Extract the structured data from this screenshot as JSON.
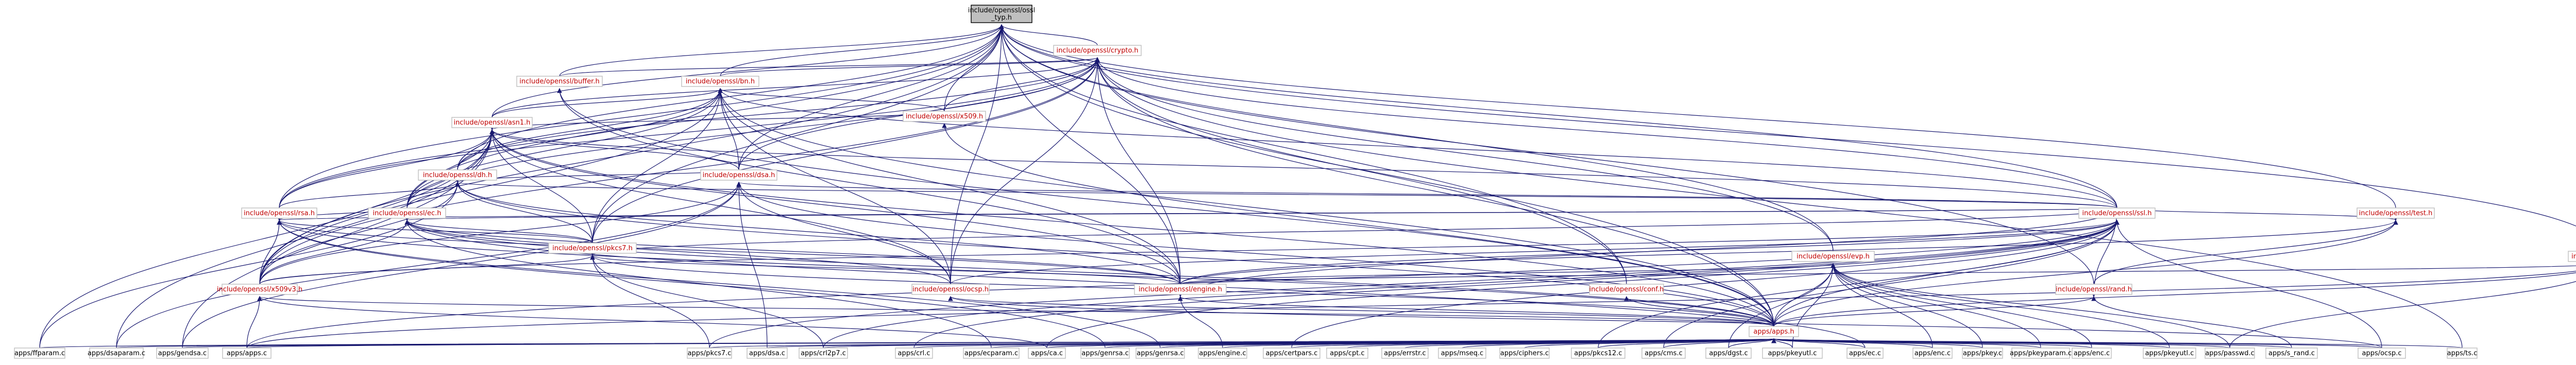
{
  "diagram": {
    "nodes": [
      {
        "id": "n0",
        "lines": [
          "include/openssl/ossl",
          "_typ.h"
        ],
        "color": "black",
        "root": true
      },
      {
        "id": "n1",
        "lines": [
          "include/openssl/crypto.h"
        ],
        "color": "red"
      },
      {
        "id": "n2",
        "lines": [
          "include/openssl/buffer.h"
        ],
        "color": "red"
      },
      {
        "id": "n3",
        "lines": [
          "include/openssl/bn.h"
        ],
        "color": "red"
      },
      {
        "id": "n4",
        "lines": [
          "include/openssl/asn1.h"
        ],
        "color": "red"
      },
      {
        "id": "n5",
        "lines": [
          "include/openssl/x509.h"
        ],
        "color": "red"
      },
      {
        "id": "n6",
        "lines": [
          "include/openssl/dh.h"
        ],
        "color": "red"
      },
      {
        "id": "n7",
        "lines": [
          "include/openssl/dsa.h"
        ],
        "color": "red"
      },
      {
        "id": "n8",
        "lines": [
          "include/openssl/ec.h"
        ],
        "color": "red"
      },
      {
        "id": "n9",
        "lines": [
          "include/openssl/rsa.h"
        ],
        "color": "red"
      },
      {
        "id": "n10",
        "lines": [
          "include/openssl/pkcs7.h"
        ],
        "color": "red"
      },
      {
        "id": "n11",
        "lines": [
          "include/openssl/ssl.h"
        ],
        "color": "red"
      },
      {
        "id": "n12",
        "lines": [
          "include/openssl/engine.h"
        ],
        "color": "red"
      },
      {
        "id": "n13",
        "lines": [
          "include/openssl/ocsp.h"
        ],
        "color": "red"
      },
      {
        "id": "n14",
        "lines": [
          "include/openssl/evp.h"
        ],
        "color": "red"
      },
      {
        "id": "n15",
        "lines": [
          "include/openssl/conf.h"
        ],
        "color": "red"
      },
      {
        "id": "n16",
        "lines": [
          "include/openssl/ui.h"
        ],
        "color": "red"
      },
      {
        "id": "n17",
        "lines": [
          "include/openssl/x509v3.h"
        ],
        "color": "red"
      },
      {
        "id": "n18",
        "lines": [
          "include/openssl/test.h"
        ],
        "color": "red"
      },
      {
        "id": "n19",
        "lines": [
          "include/openssl/rand.h"
        ],
        "color": "red"
      },
      {
        "id": "n20",
        "lines": [
          "apps/apps.h"
        ],
        "color": "red"
      },
      {
        "id": "l0",
        "lines": [
          "apps/ffparam.c"
        ],
        "color": "black"
      },
      {
        "id": "l1",
        "lines": [
          "apps/dsaparam.c"
        ],
        "color": "black"
      },
      {
        "id": "l2",
        "lines": [
          "apps/gendsa.c"
        ],
        "color": "black"
      },
      {
        "id": "l3",
        "lines": [
          "apps/apps.c"
        ],
        "color": "black"
      },
      {
        "id": "l4",
        "lines": [
          "apps/pkcs7.c"
        ],
        "color": "black"
      },
      {
        "id": "l5",
        "lines": [
          "apps/dsa.c"
        ],
        "color": "black"
      },
      {
        "id": "l6",
        "lines": [
          "apps/crl2p7.c"
        ],
        "color": "black"
      },
      {
        "id": "l7",
        "lines": [
          "apps/crl.c"
        ],
        "color": "black"
      },
      {
        "id": "l8",
        "lines": [
          "apps/ecparam.c"
        ],
        "color": "black"
      },
      {
        "id": "l9",
        "lines": [
          "apps/ca.c"
        ],
        "color": "black"
      },
      {
        "id": "l10",
        "lines": [
          "apps/genrsa.c"
        ],
        "color": "black"
      },
      {
        "id": "l11",
        "lines": [
          "apps/genrsa.c"
        ],
        "color": "black"
      },
      {
        "id": "l12",
        "lines": [
          "apps/engine.c"
        ],
        "color": "black"
      },
      {
        "id": "l13",
        "lines": [
          "apps/certpars.c"
        ],
        "color": "black"
      },
      {
        "id": "l14",
        "lines": [
          "apps/cpt.c"
        ],
        "color": "black"
      },
      {
        "id": "l15",
        "lines": [
          "apps/errstr.c"
        ],
        "color": "black"
      },
      {
        "id": "l16",
        "lines": [
          "apps/mseq.c"
        ],
        "color": "black"
      },
      {
        "id": "l17",
        "lines": [
          "apps/ciphers.c"
        ],
        "color": "black"
      },
      {
        "id": "l18",
        "lines": [
          "apps/pkcs12.c"
        ],
        "color": "black"
      },
      {
        "id": "l19",
        "lines": [
          "apps/cms.c"
        ],
        "color": "black"
      },
      {
        "id": "l20",
        "lines": [
          "apps/dgst.c"
        ],
        "color": "black"
      },
      {
        "id": "l21",
        "lines": [
          "apps/pkeyutl.c"
        ],
        "color": "black"
      },
      {
        "id": "l22",
        "lines": [
          "apps/ec.c"
        ],
        "color": "black"
      },
      {
        "id": "l23",
        "lines": [
          "apps/enc.c"
        ],
        "color": "black"
      },
      {
        "id": "l24",
        "lines": [
          "apps/pkey.c"
        ],
        "color": "black"
      },
      {
        "id": "l25",
        "lines": [
          "apps/pkeyparam.c"
        ],
        "color": "black"
      },
      {
        "id": "l26",
        "lines": [
          "apps/enc.c"
        ],
        "color": "black"
      },
      {
        "id": "l27",
        "lines": [
          "apps/pkeyutl.c"
        ],
        "color": "black"
      },
      {
        "id": "l28",
        "lines": [
          "apps/passwd.c"
        ],
        "color": "black"
      },
      {
        "id": "l29",
        "lines": [
          "apps/s_rand.c"
        ],
        "color": "black"
      },
      {
        "id": "l30",
        "lines": [
          "apps/ocsp.c"
        ],
        "color": "black"
      },
      {
        "id": "l31",
        "lines": [
          "apps/ts.c"
        ],
        "color": "black"
      }
    ],
    "edges": [
      [
        "n1",
        "n0"
      ],
      [
        "n2",
        "n0"
      ],
      [
        "n3",
        "n0"
      ],
      [
        "n4",
        "n0"
      ],
      [
        "n5",
        "n0"
      ],
      [
        "n6",
        "n0"
      ],
      [
        "n7",
        "n0"
      ],
      [
        "n8",
        "n0"
      ],
      [
        "n9",
        "n0"
      ],
      [
        "n10",
        "n0"
      ],
      [
        "n11",
        "n0"
      ],
      [
        "n12",
        "n0"
      ],
      [
        "n13",
        "n0"
      ],
      [
        "n14",
        "n0"
      ],
      [
        "n15",
        "n0"
      ],
      [
        "n16",
        "n0"
      ],
      [
        "n17",
        "n0"
      ],
      [
        "n18",
        "n0"
      ],
      [
        "n19",
        "n0"
      ],
      [
        "n20",
        "n0"
      ],
      [
        "n2",
        "n1"
      ],
      [
        "n3",
        "n1"
      ],
      [
        "n4",
        "n1"
      ],
      [
        "n5",
        "n1"
      ],
      [
        "n6",
        "n1"
      ],
      [
        "n7",
        "n1"
      ],
      [
        "n8",
        "n1"
      ],
      [
        "n9",
        "n1"
      ],
      [
        "n10",
        "n1"
      ],
      [
        "n11",
        "n1"
      ],
      [
        "n12",
        "n1"
      ],
      [
        "n13",
        "n1"
      ],
      [
        "n14",
        "n1"
      ],
      [
        "n15",
        "n1"
      ],
      [
        "n17",
        "n1"
      ],
      [
        "n20",
        "n1"
      ],
      [
        "l31",
        "n1"
      ],
      [
        "n4",
        "n3"
      ],
      [
        "n5",
        "n3"
      ],
      [
        "n6",
        "n3"
      ],
      [
        "n7",
        "n3"
      ],
      [
        "n8",
        "n3"
      ],
      [
        "n9",
        "n3"
      ],
      [
        "n10",
        "n3"
      ],
      [
        "n11",
        "n3"
      ],
      [
        "n12",
        "n3"
      ],
      [
        "n13",
        "n3"
      ],
      [
        "n17",
        "n3"
      ],
      [
        "n20",
        "n3"
      ],
      [
        "n5",
        "n4"
      ],
      [
        "n6",
        "n4"
      ],
      [
        "n7",
        "n4"
      ],
      [
        "n8",
        "n4"
      ],
      [
        "n9",
        "n4"
      ],
      [
        "n10",
        "n4"
      ],
      [
        "n11",
        "n4"
      ],
      [
        "n12",
        "n4"
      ],
      [
        "n13",
        "n4"
      ],
      [
        "n17",
        "n4"
      ],
      [
        "n20",
        "n4"
      ],
      [
        "n7",
        "n6"
      ],
      [
        "n8",
        "n6"
      ],
      [
        "n9",
        "n6"
      ],
      [
        "n10",
        "n6"
      ],
      [
        "n11",
        "n6"
      ],
      [
        "n12",
        "n6"
      ],
      [
        "n17",
        "n6"
      ],
      [
        "n20",
        "n6"
      ],
      [
        "n8",
        "n9"
      ],
      [
        "n10",
        "n9"
      ],
      [
        "n11",
        "n9"
      ],
      [
        "n12",
        "n9"
      ],
      [
        "n17",
        "n9"
      ],
      [
        "n20",
        "n9"
      ],
      [
        "n10",
        "n8"
      ],
      [
        "n11",
        "n8"
      ],
      [
        "n12",
        "n8"
      ],
      [
        "n13",
        "n8"
      ],
      [
        "n17",
        "n8"
      ],
      [
        "n20",
        "n8"
      ],
      [
        "n11",
        "n10"
      ],
      [
        "n12",
        "n10"
      ],
      [
        "n17",
        "n10"
      ],
      [
        "n20",
        "n10"
      ],
      [
        "n11",
        "n7"
      ],
      [
        "n13",
        "n7"
      ],
      [
        "n17",
        "n7"
      ],
      [
        "n20",
        "n7"
      ],
      [
        "n11",
        "n12"
      ],
      [
        "n12",
        "n2"
      ],
      [
        "n20",
        "n2"
      ],
      [
        "n12",
        "n14"
      ],
      [
        "n12",
        "n16"
      ],
      [
        "n12",
        "n11"
      ],
      [
        "n13",
        "n11"
      ],
      [
        "n17",
        "n11"
      ],
      [
        "n20",
        "n11"
      ],
      [
        "n20",
        "n12"
      ],
      [
        "n20",
        "n13"
      ],
      [
        "n20",
        "n14"
      ],
      [
        "n20",
        "n15"
      ],
      [
        "n20",
        "n16"
      ],
      [
        "n20",
        "n17"
      ],
      [
        "n20",
        "n18"
      ],
      [
        "n20",
        "n19"
      ],
      [
        "n20",
        "n5"
      ],
      [
        "n11",
        "n19"
      ],
      [
        "n11",
        "n18"
      ],
      [
        "n12",
        "n18"
      ],
      [
        "n19",
        "n18"
      ]
    ],
    "leaf_edges": [
      [
        "l0",
        "n20"
      ],
      [
        "l1",
        "n20"
      ],
      [
        "l2",
        "n20"
      ],
      [
        "l3",
        "n20"
      ],
      [
        "l4",
        "n20"
      ],
      [
        "l5",
        "n20"
      ],
      [
        "l6",
        "n20"
      ],
      [
        "l7",
        "n20"
      ],
      [
        "l8",
        "n20"
      ],
      [
        "l9",
        "n20"
      ],
      [
        "l10",
        "n20"
      ],
      [
        "l11",
        "n20"
      ],
      [
        "l12",
        "n20"
      ],
      [
        "l13",
        "n20"
      ],
      [
        "l14",
        "n20"
      ],
      [
        "l15",
        "n20"
      ],
      [
        "l16",
        "n20"
      ],
      [
        "l17",
        "n20"
      ],
      [
        "l18",
        "n20"
      ],
      [
        "l19",
        "n20"
      ],
      [
        "l20",
        "n20"
      ],
      [
        "l21",
        "n20"
      ],
      [
        "l22",
        "n20"
      ],
      [
        "l23",
        "n20"
      ],
      [
        "l24",
        "n20"
      ],
      [
        "l25",
        "n20"
      ],
      [
        "l26",
        "n20"
      ],
      [
        "l27",
        "n20"
      ],
      [
        "l28",
        "n20"
      ],
      [
        "l29",
        "n20"
      ],
      [
        "l30",
        "n20"
      ],
      [
        "l31",
        "n20"
      ],
      [
        "l0",
        "n6"
      ],
      [
        "l1",
        "n7"
      ],
      [
        "l2",
        "n7"
      ],
      [
        "l3",
        "n11"
      ],
      [
        "l4",
        "n11"
      ],
      [
        "l5",
        "n7"
      ],
      [
        "l6",
        "n11"
      ],
      [
        "l7",
        "n11"
      ],
      [
        "l8",
        "n8"
      ],
      [
        "l9",
        "n11"
      ],
      [
        "l10",
        "n9"
      ],
      [
        "l11",
        "n9"
      ],
      [
        "l12",
        "n12"
      ],
      [
        "l19",
        "n11"
      ],
      [
        "l20",
        "n14"
      ],
      [
        "l21",
        "n14"
      ],
      [
        "l22",
        "n8"
      ],
      [
        "l23",
        "n14"
      ],
      [
        "l24",
        "n14"
      ],
      [
        "l25",
        "n14"
      ],
      [
        "l26",
        "n14"
      ],
      [
        "l27",
        "n14"
      ],
      [
        "l28",
        "n14"
      ],
      [
        "l29",
        "n19"
      ],
      [
        "l30",
        "n13"
      ],
      [
        "l3",
        "n16"
      ],
      [
        "l28",
        "n16"
      ],
      [
        "l30",
        "n11"
      ],
      [
        "l18",
        "n11"
      ],
      [
        "l13",
        "n11"
      ],
      [
        "l9",
        "n17"
      ],
      [
        "l3",
        "n17"
      ],
      [
        "l4",
        "n10"
      ],
      [
        "l6",
        "n10"
      ],
      [
        "l0",
        "n4"
      ],
      [
        "l1",
        "n4"
      ],
      [
        "l2",
        "n4"
      ]
    ]
  }
}
